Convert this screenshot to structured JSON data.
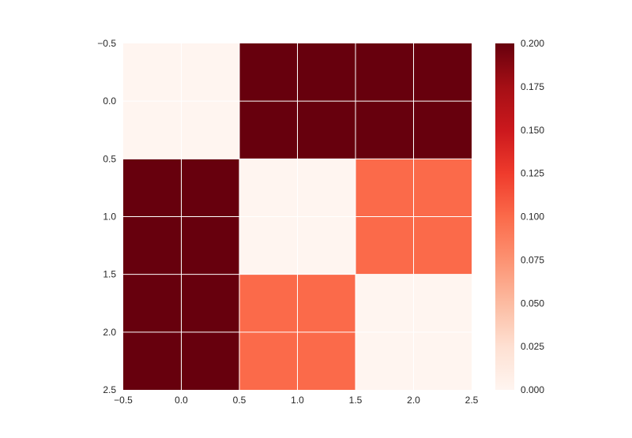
{
  "chart_data": {
    "type": "heatmap",
    "title": "",
    "xlabel": "",
    "ylabel": "",
    "x_centers": [
      0,
      1,
      2
    ],
    "y_centers": [
      0,
      1,
      2
    ],
    "xlim": [
      -0.5,
      2.5
    ],
    "ylim": [
      2.5,
      -0.5
    ],
    "x_ticks": [
      -0.5,
      0.0,
      0.5,
      1.0,
      1.5,
      2.0,
      2.5
    ],
    "x_tick_labels": [
      "−0.5",
      "0.0",
      "0.5",
      "1.0",
      "1.5",
      "2.0",
      "2.5"
    ],
    "y_ticks": [
      -0.5,
      0.0,
      0.5,
      1.0,
      1.5,
      2.0,
      2.5
    ],
    "y_tick_labels": [
      "−0.5",
      "0.0",
      "0.5",
      "1.0",
      "1.5",
      "2.0",
      "2.5"
    ],
    "values": [
      [
        0.0,
        0.2,
        0.2
      ],
      [
        0.2,
        0.0,
        0.1
      ],
      [
        0.2,
        0.1,
        0.0
      ]
    ],
    "colormap": "Reds",
    "colorbar": {
      "min": 0.0,
      "max": 0.2,
      "ticks": [
        0.0,
        0.025,
        0.05,
        0.075,
        0.1,
        0.125,
        0.15,
        0.175,
        0.2
      ],
      "tick_labels": [
        "0.000",
        "0.025",
        "0.050",
        "0.075",
        "0.100",
        "0.125",
        "0.150",
        "0.175",
        "0.200"
      ]
    },
    "grid": true,
    "grid_color": "#ffffff",
    "colors": {
      "low": "#fff5f0",
      "mid": "#fc6a4a",
      "high": "#67000d"
    }
  }
}
